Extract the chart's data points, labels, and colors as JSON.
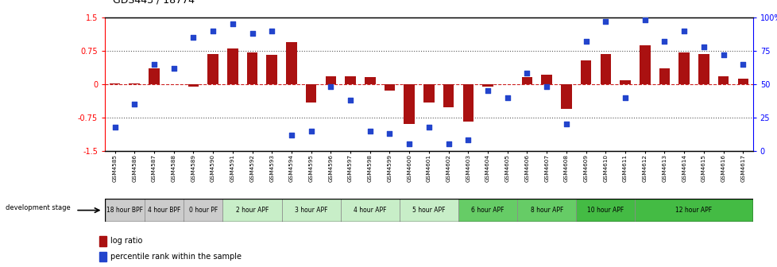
{
  "title": "GDS443 / 18774",
  "samples": [
    "GSM4585",
    "GSM4586",
    "GSM4587",
    "GSM4588",
    "GSM4589",
    "GSM4590",
    "GSM4591",
    "GSM4592",
    "GSM4593",
    "GSM4594",
    "GSM4595",
    "GSM4596",
    "GSM4597",
    "GSM4598",
    "GSM4599",
    "GSM4600",
    "GSM4601",
    "GSM4602",
    "GSM4603",
    "GSM4604",
    "GSM4605",
    "GSM4606",
    "GSM4607",
    "GSM4608",
    "GSM4609",
    "GSM4610",
    "GSM4611",
    "GSM4612",
    "GSM4613",
    "GSM4614",
    "GSM4615",
    "GSM4616",
    "GSM4617"
  ],
  "log_ratio": [
    0.02,
    0.01,
    0.35,
    0.0,
    -0.05,
    0.68,
    0.8,
    0.72,
    0.65,
    0.95,
    -0.42,
    0.18,
    0.17,
    0.15,
    -0.15,
    -0.9,
    -0.42,
    -0.52,
    -0.85,
    -0.06,
    0.0,
    0.15,
    0.22,
    -0.55,
    0.53,
    0.68,
    0.09,
    0.87,
    0.35,
    0.72,
    0.68,
    0.18,
    0.12
  ],
  "percentile": [
    18,
    35,
    65,
    62,
    85,
    90,
    95,
    88,
    90,
    12,
    15,
    48,
    38,
    15,
    13,
    5,
    18,
    5,
    8,
    45,
    40,
    58,
    48,
    20,
    82,
    97,
    40,
    98,
    82,
    90,
    78,
    72,
    65
  ],
  "stages": [
    {
      "label": "18 hour BPF",
      "start": 0,
      "end": 2,
      "color": "#cccccc"
    },
    {
      "label": "4 hour BPF",
      "start": 2,
      "end": 4,
      "color": "#cccccc"
    },
    {
      "label": "0 hour PF",
      "start": 4,
      "end": 6,
      "color": "#cccccc"
    },
    {
      "label": "2 hour APF",
      "start": 6,
      "end": 9,
      "color": "#c8eec8"
    },
    {
      "label": "3 hour APF",
      "start": 9,
      "end": 12,
      "color": "#c8eec8"
    },
    {
      "label": "4 hour APF",
      "start": 12,
      "end": 15,
      "color": "#c8eec8"
    },
    {
      "label": "5 hour APF",
      "start": 15,
      "end": 18,
      "color": "#c8eec8"
    },
    {
      "label": "6 hour APF",
      "start": 18,
      "end": 21,
      "color": "#66cc66"
    },
    {
      "label": "8 hour APF",
      "start": 21,
      "end": 24,
      "color": "#66cc66"
    },
    {
      "label": "10 hour APF",
      "start": 24,
      "end": 27,
      "color": "#44bb44"
    },
    {
      "label": "12 hour APF",
      "start": 27,
      "end": 33,
      "color": "#44bb44"
    }
  ],
  "ylim_left": [
    -1.5,
    1.5
  ],
  "ylim_right": [
    0,
    100
  ],
  "bar_color": "#aa1111",
  "dot_color": "#2244cc",
  "hline_zero_color": "#cc2222",
  "hline_ref_color": "#555555"
}
